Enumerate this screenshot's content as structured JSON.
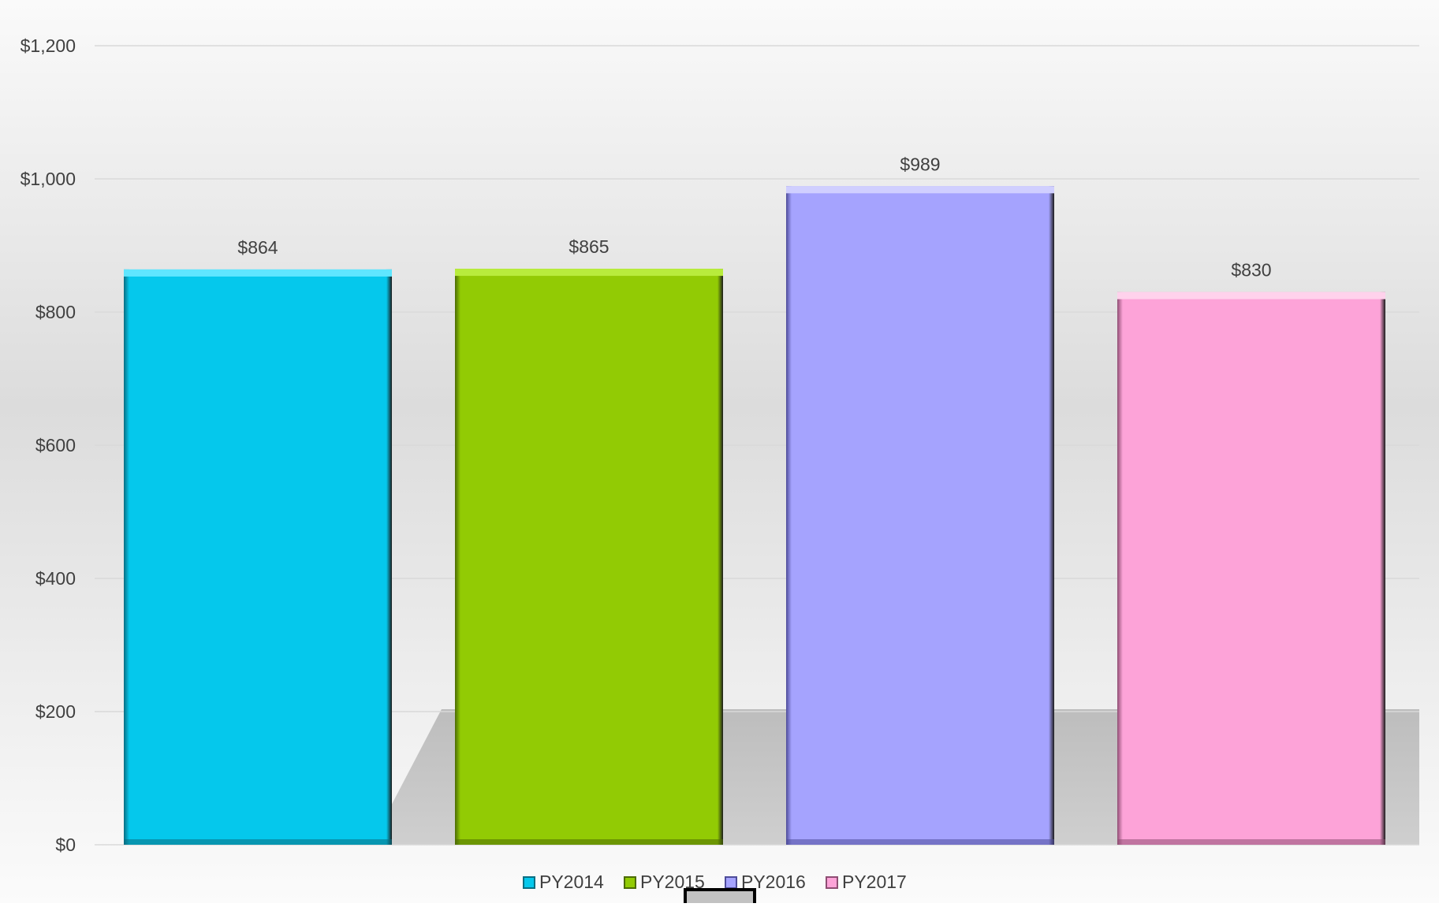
{
  "chart_data": {
    "type": "bar",
    "title": "",
    "xlabel": "",
    "ylabel": "",
    "categories": [
      "PY2014",
      "PY2015",
      "PY2016",
      "PY2017"
    ],
    "values": [
      864,
      865,
      989,
      830
    ],
    "data_labels": [
      "$864",
      "$865",
      "$989",
      "$830"
    ],
    "ylim": [
      0,
      1200
    ],
    "yticks": [
      0,
      200,
      400,
      600,
      800,
      1000,
      1200
    ],
    "ytick_labels": [
      "$0",
      "$200",
      "$400",
      "$600",
      "$800",
      "$1,000",
      "$1,200"
    ],
    "grid": true,
    "legend": {
      "position": "bottom",
      "entries": [
        "PY2014",
        "PY2015",
        "PY2016",
        "PY2017"
      ]
    },
    "colors": [
      "#05C8EC",
      "#92CB04",
      "#A5A3FE",
      "#FDA3D8"
    ],
    "edge_colors": [
      "#0A6E82",
      "#4C6B04",
      "#4E4C99",
      "#8E4E73"
    ],
    "highlight_colors": [
      "#5FE6FF",
      "#B8EC3C",
      "#D0CFFF",
      "#FFD2EC"
    ]
  }
}
